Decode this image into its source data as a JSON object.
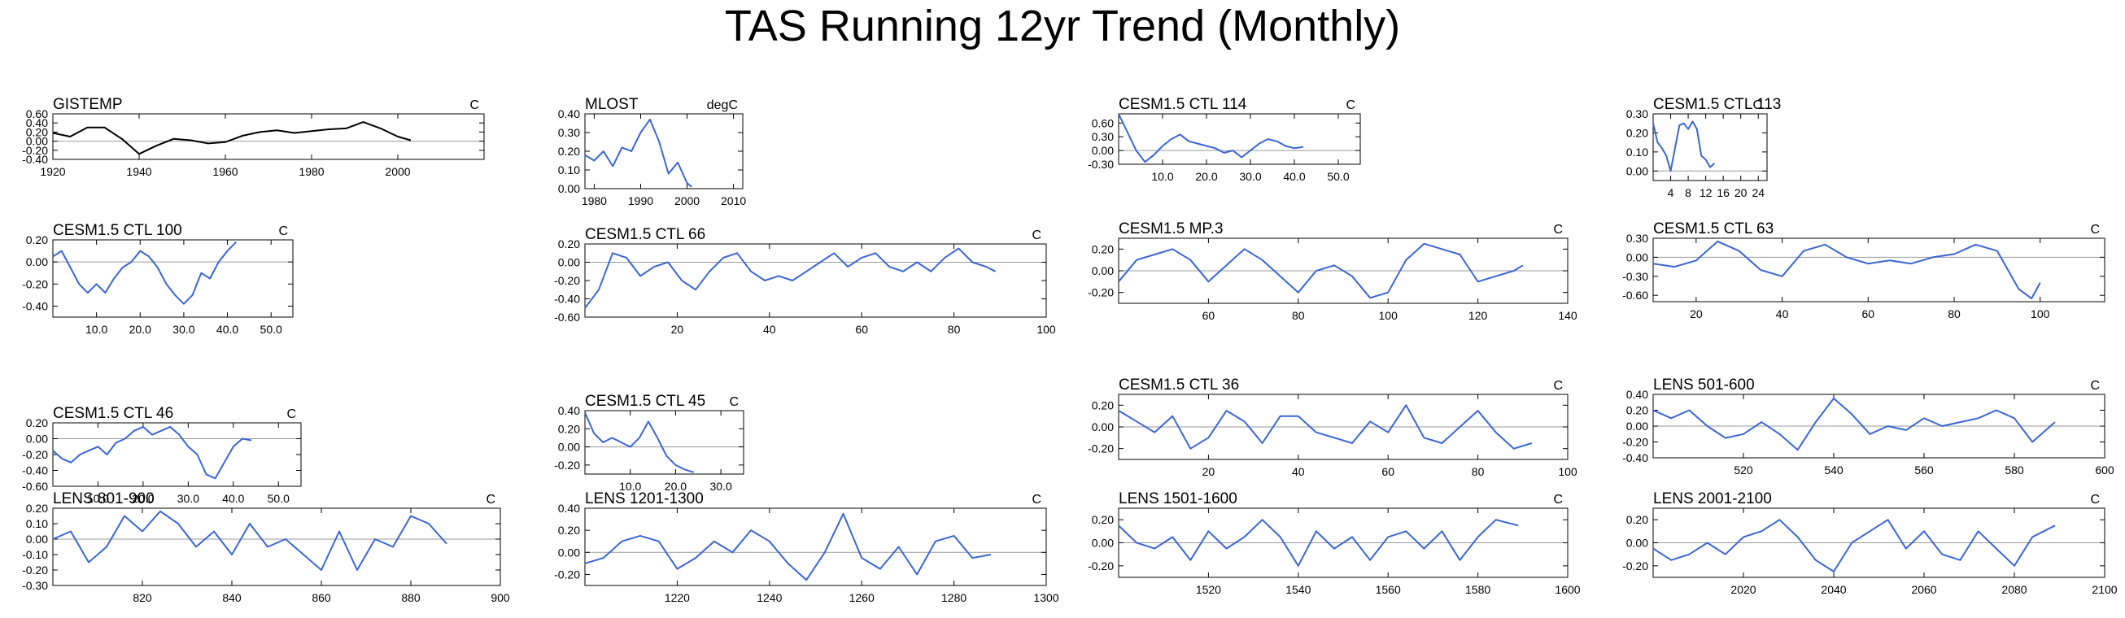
{
  "title": "TAS Running 12yr Trend (Monthly)",
  "colors": {
    "observed": "#000000",
    "model": "#3a66d4",
    "zero_line": "#9a9a9a",
    "axis": "#000000"
  },
  "chart_data": [
    {
      "type": "line",
      "title": "GISTEMP",
      "unit": "C",
      "color": "#000000",
      "xlim": [
        1920,
        2020
      ],
      "ylim": [
        -0.4,
        0.6
      ],
      "xticks": [
        1920,
        1940,
        1960,
        1980,
        2000
      ],
      "xtick_labels": [
        "1920",
        "1940",
        "1960",
        "1980",
        "2000"
      ],
      "yticks": [
        -0.4,
        -0.2,
        0.0,
        0.2,
        0.4,
        0.6
      ],
      "ytick_labels": [
        "-0.40",
        "-0.20",
        "0.00",
        "0.20",
        "0.40",
        "0.60"
      ],
      "x": [
        1920,
        1924,
        1928,
        1932,
        1936,
        1940,
        1944,
        1948,
        1952,
        1956,
        1960,
        1964,
        1968,
        1972,
        1976,
        1980,
        1984,
        1988,
        1992,
        1996,
        2000,
        2003
      ],
      "y": [
        0.18,
        0.1,
        0.3,
        0.3,
        0.05,
        -0.28,
        -0.1,
        0.05,
        0.02,
        -0.05,
        -0.02,
        0.12,
        0.2,
        0.24,
        0.18,
        0.22,
        0.26,
        0.28,
        0.42,
        0.28,
        0.1,
        0.02
      ]
    },
    {
      "type": "line",
      "title": "MLOST",
      "unit": "degC",
      "color": "#3a66d4",
      "xlim": [
        1978,
        2012
      ],
      "ylim": [
        0.0,
        0.4
      ],
      "xticks": [
        1980,
        1990,
        2000,
        2010
      ],
      "xtick_labels": [
        "1980",
        "1990",
        "2000",
        "2010"
      ],
      "yticks": [
        0.0,
        0.1,
        0.2,
        0.3,
        0.4
      ],
      "ytick_labels": [
        "0.00",
        "0.10",
        "0.20",
        "0.30",
        "0.40"
      ],
      "x": [
        1978,
        1980,
        1982,
        1984,
        1986,
        1988,
        1990,
        1992,
        1994,
        1996,
        1998,
        2000,
        2001
      ],
      "y": [
        0.18,
        0.15,
        0.2,
        0.12,
        0.22,
        0.2,
        0.3,
        0.37,
        0.25,
        0.08,
        0.14,
        0.03,
        0.01
      ]
    },
    {
      "type": "line",
      "title": "CESM1.5 CTL 114",
      "unit": "C",
      "color": "#3a66d4",
      "xlim": [
        0,
        55
      ],
      "ylim": [
        -0.3,
        0.8
      ],
      "xticks": [
        10,
        20,
        30,
        40,
        50
      ],
      "xtick_labels": [
        "10.0",
        "20.0",
        "30.0",
        "40.0",
        "50.0"
      ],
      "yticks": [
        -0.3,
        0.0,
        0.3,
        0.6
      ],
      "ytick_labels": [
        "-0.30",
        "0.00",
        "0.30",
        "0.60"
      ],
      "x": [
        0,
        2,
        4,
        6,
        8,
        10,
        12,
        14,
        16,
        18,
        20,
        22,
        24,
        26,
        28,
        30,
        32,
        34,
        36,
        38,
        40,
        42
      ],
      "y": [
        0.8,
        0.4,
        0.0,
        -0.25,
        -0.1,
        0.1,
        0.25,
        0.35,
        0.2,
        0.15,
        0.1,
        0.05,
        -0.05,
        0.0,
        -0.15,
        0.0,
        0.15,
        0.25,
        0.2,
        0.1,
        0.05,
        0.08
      ]
    },
    {
      "type": "line",
      "title": "CESM1.5 CTL 113",
      "unit": "C",
      "color": "#3a66d4",
      "xlim": [
        0,
        26
      ],
      "ylim": [
        -0.05,
        0.3
      ],
      "xticks": [
        4,
        8,
        12,
        16,
        20,
        24
      ],
      "xtick_labels": [
        "4",
        "8",
        "12",
        "16",
        "20",
        "24"
      ],
      "yticks": [
        0.0,
        0.1,
        0.2,
        0.3
      ],
      "ytick_labels": [
        "0.00",
        "0.10",
        "0.20",
        "0.30"
      ],
      "x": [
        0,
        1,
        2,
        3,
        4,
        5,
        6,
        7,
        8,
        9,
        10,
        11,
        12,
        13,
        14
      ],
      "y": [
        0.25,
        0.15,
        0.12,
        0.08,
        0.0,
        0.12,
        0.24,
        0.25,
        0.22,
        0.26,
        0.22,
        0.08,
        0.06,
        0.02,
        0.04
      ]
    },
    {
      "type": "line",
      "title": "CESM1.5 CTL 100",
      "unit": "C",
      "color": "#3a66d4",
      "xlim": [
        0,
        55
      ],
      "ylim": [
        -0.5,
        0.2
      ],
      "xticks": [
        10,
        20,
        30,
        40,
        50
      ],
      "xtick_labels": [
        "10.0",
        "20.0",
        "30.0",
        "40.0",
        "50.0"
      ],
      "yticks": [
        -0.4,
        -0.2,
        0.0,
        0.2
      ],
      "ytick_labels": [
        "-0.40",
        "-0.20",
        "0.00",
        "0.20"
      ],
      "x": [
        0,
        2,
        4,
        6,
        8,
        10,
        12,
        14,
        16,
        18,
        20,
        22,
        24,
        26,
        28,
        30,
        32,
        34,
        36,
        38,
        40,
        42
      ],
      "y": [
        0.05,
        0.1,
        -0.05,
        -0.2,
        -0.28,
        -0.2,
        -0.28,
        -0.15,
        -0.05,
        0.0,
        0.1,
        0.05,
        -0.05,
        -0.2,
        -0.3,
        -0.38,
        -0.3,
        -0.1,
        -0.15,
        0.0,
        0.1,
        0.18
      ]
    },
    {
      "type": "line",
      "title": "CESM1.5 CTL 66",
      "unit": "C",
      "color": "#3a66d4",
      "xlim": [
        0,
        100
      ],
      "ylim": [
        -0.6,
        0.2
      ],
      "xticks": [
        20,
        40,
        60,
        80,
        100
      ],
      "xtick_labels": [
        "20",
        "40",
        "60",
        "80",
        "100"
      ],
      "yticks": [
        -0.6,
        -0.4,
        -0.2,
        0.0,
        0.2
      ],
      "ytick_labels": [
        "-0.60",
        "-0.40",
        "-0.20",
        "0.00",
        "0.20"
      ],
      "x": [
        0,
        3,
        6,
        9,
        12,
        15,
        18,
        21,
        24,
        27,
        30,
        33,
        36,
        39,
        42,
        45,
        48,
        51,
        54,
        57,
        60,
        63,
        66,
        69,
        72,
        75,
        78,
        81,
        84,
        87,
        89
      ],
      "y": [
        -0.5,
        -0.3,
        0.1,
        0.05,
        -0.15,
        -0.05,
        0.0,
        -0.2,
        -0.3,
        -0.1,
        0.05,
        0.1,
        -0.1,
        -0.2,
        -0.15,
        -0.2,
        -0.1,
        0.0,
        0.1,
        -0.05,
        0.05,
        0.1,
        -0.05,
        -0.1,
        0.0,
        -0.1,
        0.05,
        0.15,
        0.0,
        -0.05,
        -0.1
      ]
    },
    {
      "type": "line",
      "title": "CESM1.5 MP.3",
      "unit": "C",
      "color": "#3a66d4",
      "xlim": [
        40,
        140
      ],
      "ylim": [
        -0.3,
        0.3
      ],
      "xticks": [
        60,
        80,
        100,
        120,
        140
      ],
      "xtick_labels": [
        "60",
        "80",
        "100",
        "120",
        "140"
      ],
      "yticks": [
        -0.2,
        0.0,
        0.2
      ],
      "ytick_labels": [
        "-0.20",
        "0.00",
        "0.20"
      ],
      "x": [
        40,
        44,
        48,
        52,
        56,
        60,
        64,
        68,
        72,
        76,
        80,
        84,
        88,
        92,
        96,
        100,
        104,
        108,
        112,
        116,
        120,
        124,
        128,
        130
      ],
      "y": [
        -0.1,
        0.1,
        0.15,
        0.2,
        0.1,
        -0.1,
        0.05,
        0.2,
        0.1,
        -0.05,
        -0.2,
        0.0,
        0.05,
        -0.05,
        -0.25,
        -0.2,
        0.1,
        0.25,
        0.2,
        0.15,
        -0.1,
        -0.05,
        0.0,
        0.05
      ]
    },
    {
      "type": "line",
      "title": "CESM1.5 CTL 63",
      "unit": "C",
      "color": "#3a66d4",
      "xlim": [
        10,
        115
      ],
      "ylim": [
        -0.7,
        0.3
      ],
      "xticks": [
        20,
        40,
        60,
        80,
        100
      ],
      "xtick_labels": [
        "20",
        "40",
        "60",
        "80",
        "100"
      ],
      "yticks": [
        -0.6,
        -0.3,
        0.0,
        0.3
      ],
      "ytick_labels": [
        "-0.60",
        "-0.30",
        "0.00",
        "0.30"
      ],
      "x": [
        10,
        15,
        20,
        25,
        30,
        35,
        40,
        45,
        50,
        55,
        60,
        65,
        70,
        75,
        80,
        85,
        90,
        95,
        98,
        100
      ],
      "y": [
        -0.1,
        -0.15,
        -0.05,
        0.25,
        0.1,
        -0.2,
        -0.3,
        0.1,
        0.2,
        0.0,
        -0.1,
        -0.05,
        -0.1,
        0.0,
        0.05,
        0.2,
        0.1,
        -0.5,
        -0.65,
        -0.4
      ]
    },
    {
      "type": "line",
      "title": "CESM1.5 CTL 46",
      "unit": "C",
      "color": "#3a66d4",
      "xlim": [
        0,
        55
      ],
      "ylim": [
        -0.6,
        0.2
      ],
      "xticks": [
        10,
        20,
        30,
        40,
        50
      ],
      "xtick_labels": [
        "10.0",
        "20.0",
        "30.0",
        "40.0",
        "50.0"
      ],
      "yticks": [
        -0.6,
        -0.4,
        -0.2,
        0.0,
        0.2
      ],
      "ytick_labels": [
        "-0.60",
        "-0.40",
        "-0.20",
        "0.00",
        "0.20"
      ],
      "x": [
        0,
        2,
        4,
        6,
        8,
        10,
        12,
        14,
        16,
        18,
        20,
        22,
        24,
        26,
        28,
        30,
        32,
        34,
        36,
        38,
        40,
        42,
        44
      ],
      "y": [
        -0.15,
        -0.25,
        -0.3,
        -0.2,
        -0.15,
        -0.1,
        -0.2,
        -0.05,
        0.0,
        0.1,
        0.15,
        0.05,
        0.1,
        0.15,
        0.05,
        -0.1,
        -0.2,
        -0.45,
        -0.5,
        -0.3,
        -0.1,
        0.0,
        -0.02
      ]
    },
    {
      "type": "line",
      "title": "CESM1.5 CTL 45",
      "unit": "C",
      "color": "#3a66d4",
      "xlim": [
        0,
        35
      ],
      "ylim": [
        -0.3,
        0.4
      ],
      "xticks": [
        10,
        20,
        30
      ],
      "xtick_labels": [
        "10.0",
        "20.0",
        "30.0"
      ],
      "yticks": [
        -0.2,
        0.0,
        0.2,
        0.4
      ],
      "ytick_labels": [
        "-0.20",
        "0.00",
        "0.20",
        "0.40"
      ],
      "x": [
        0,
        2,
        4,
        6,
        8,
        10,
        12,
        14,
        16,
        18,
        20,
        22,
        24
      ],
      "y": [
        0.38,
        0.15,
        0.05,
        0.1,
        0.05,
        0.0,
        0.1,
        0.28,
        0.1,
        -0.1,
        -0.2,
        -0.25,
        -0.28
      ]
    },
    {
      "type": "line",
      "title": "CESM1.5 CTL 36",
      "unit": "C",
      "color": "#3a66d4",
      "xlim": [
        0,
        100
      ],
      "ylim": [
        -0.3,
        0.3
      ],
      "xticks": [
        20,
        40,
        60,
        80,
        100
      ],
      "xtick_labels": [
        "20",
        "40",
        "60",
        "80",
        "100"
      ],
      "yticks": [
        -0.2,
        0.0,
        0.2
      ],
      "ytick_labels": [
        "-0.20",
        "0.00",
        "0.20"
      ],
      "x": [
        0,
        4,
        8,
        12,
        16,
        20,
        24,
        28,
        32,
        36,
        40,
        44,
        48,
        52,
        56,
        60,
        64,
        68,
        72,
        76,
        80,
        84,
        88,
        92
      ],
      "y": [
        0.15,
        0.05,
        -0.05,
        0.1,
        -0.2,
        -0.1,
        0.15,
        0.05,
        -0.15,
        0.1,
        0.1,
        -0.05,
        -0.1,
        -0.15,
        0.05,
        -0.05,
        0.2,
        -0.1,
        -0.15,
        0.0,
        0.15,
        -0.05,
        -0.2,
        -0.15
      ]
    },
    {
      "type": "line",
      "title": "LENS 501-600",
      "unit": "C",
      "color": "#3a66d4",
      "xlim": [
        500,
        600
      ],
      "ylim": [
        -0.4,
        0.4
      ],
      "xticks": [
        520,
        540,
        560,
        580,
        600
      ],
      "xtick_labels": [
        "520",
        "540",
        "560",
        "580",
        "600"
      ],
      "yticks": [
        -0.4,
        -0.2,
        0.0,
        0.2,
        0.4
      ],
      "ytick_labels": [
        "-0.40",
        "-0.20",
        "0.00",
        "0.20",
        "0.40"
      ],
      "x": [
        500,
        504,
        508,
        512,
        516,
        520,
        524,
        528,
        532,
        536,
        540,
        544,
        548,
        552,
        556,
        560,
        564,
        568,
        572,
        576,
        580,
        584,
        589
      ],
      "y": [
        0.2,
        0.1,
        0.2,
        0.0,
        -0.15,
        -0.1,
        0.05,
        -0.1,
        -0.3,
        0.05,
        0.35,
        0.15,
        -0.1,
        0.0,
        -0.05,
        0.1,
        0.0,
        0.05,
        0.1,
        0.2,
        0.1,
        -0.2,
        0.05
      ]
    },
    {
      "type": "line",
      "title": "LENS 801-900",
      "unit": "C",
      "color": "#3a66d4",
      "xlim": [
        800,
        900
      ],
      "ylim": [
        -0.3,
        0.2
      ],
      "xticks": [
        820,
        840,
        860,
        880,
        900
      ],
      "xtick_labels": [
        "820",
        "840",
        "860",
        "880",
        "900"
      ],
      "yticks": [
        -0.3,
        -0.2,
        -0.1,
        0.0,
        0.1,
        0.2
      ],
      "ytick_labels": [
        "-0.30",
        "-0.20",
        "-0.10",
        "0.00",
        "0.10",
        "0.20"
      ],
      "x": [
        800,
        804,
        808,
        812,
        816,
        820,
        824,
        828,
        832,
        836,
        840,
        844,
        848,
        852,
        856,
        860,
        864,
        868,
        872,
        876,
        880,
        884,
        888
      ],
      "y": [
        0.0,
        0.05,
        -0.15,
        -0.05,
        0.15,
        0.05,
        0.18,
        0.1,
        -0.05,
        0.05,
        -0.1,
        0.1,
        -0.05,
        0.0,
        -0.1,
        -0.2,
        0.05,
        -0.2,
        0.0,
        -0.05,
        0.15,
        0.1,
        -0.03
      ]
    },
    {
      "type": "line",
      "title": "LENS 1201-1300",
      "unit": "C",
      "color": "#3a66d4",
      "xlim": [
        1200,
        1300
      ],
      "ylim": [
        -0.3,
        0.4
      ],
      "xticks": [
        1220,
        1240,
        1260,
        1280,
        1300
      ],
      "xtick_labels": [
        "1220",
        "1240",
        "1260",
        "1280",
        "1300"
      ],
      "yticks": [
        -0.2,
        0.0,
        0.2,
        0.4
      ],
      "ytick_labels": [
        "-0.20",
        "0.00",
        "0.20",
        "0.40"
      ],
      "x": [
        1200,
        1204,
        1208,
        1212,
        1216,
        1220,
        1224,
        1228,
        1232,
        1236,
        1240,
        1244,
        1248,
        1252,
        1256,
        1260,
        1264,
        1268,
        1272,
        1276,
        1280,
        1284,
        1288
      ],
      "y": [
        -0.1,
        -0.05,
        0.1,
        0.15,
        0.1,
        -0.15,
        -0.05,
        0.1,
        0.0,
        0.2,
        0.1,
        -0.1,
        -0.25,
        0.0,
        0.35,
        -0.05,
        -0.15,
        0.05,
        -0.2,
        0.1,
        0.15,
        -0.05,
        -0.02
      ]
    },
    {
      "type": "line",
      "title": "LENS 1501-1600",
      "unit": "C",
      "color": "#3a66d4",
      "xlim": [
        1500,
        1600
      ],
      "ylim": [
        -0.3,
        0.3
      ],
      "xticks": [
        1520,
        1540,
        1560,
        1580,
        1600
      ],
      "xtick_labels": [
        "1520",
        "1540",
        "1560",
        "1580",
        "1600"
      ],
      "yticks": [
        -0.2,
        0.0,
        0.2
      ],
      "ytick_labels": [
        "-0.20",
        "0.00",
        "0.20"
      ],
      "x": [
        1500,
        1504,
        1508,
        1512,
        1516,
        1520,
        1524,
        1528,
        1532,
        1536,
        1540,
        1544,
        1548,
        1552,
        1556,
        1560,
        1564,
        1568,
        1572,
        1576,
        1580,
        1584,
        1589
      ],
      "y": [
        0.15,
        0.0,
        -0.05,
        0.05,
        -0.15,
        0.1,
        -0.05,
        0.05,
        0.2,
        0.05,
        -0.2,
        0.1,
        -0.05,
        0.05,
        -0.15,
        0.05,
        0.1,
        -0.05,
        0.1,
        -0.15,
        0.05,
        0.2,
        0.15
      ]
    },
    {
      "type": "line",
      "title": "LENS 2001-2100",
      "unit": "C",
      "color": "#3a66d4",
      "xlim": [
        2000,
        2100
      ],
      "ylim": [
        -0.3,
        0.3
      ],
      "xticks": [
        2020,
        2040,
        2060,
        2080,
        2100
      ],
      "xtick_labels": [
        "2020",
        "2040",
        "2060",
        "2080",
        "2100"
      ],
      "yticks": [
        -0.2,
        0.0,
        0.2
      ],
      "ytick_labels": [
        "-0.20",
        "0.00",
        "0.20"
      ],
      "x": [
        2000,
        2004,
        2008,
        2012,
        2016,
        2020,
        2024,
        2028,
        2032,
        2036,
        2040,
        2044,
        2048,
        2052,
        2056,
        2060,
        2064,
        2068,
        2072,
        2076,
        2080,
        2084,
        2089
      ],
      "y": [
        -0.05,
        -0.15,
        -0.1,
        0.0,
        -0.1,
        0.05,
        0.1,
        0.2,
        0.05,
        -0.15,
        -0.25,
        0.0,
        0.1,
        0.2,
        -0.05,
        0.1,
        -0.1,
        -0.15,
        0.1,
        -0.05,
        -0.2,
        0.05,
        0.15
      ]
    }
  ]
}
